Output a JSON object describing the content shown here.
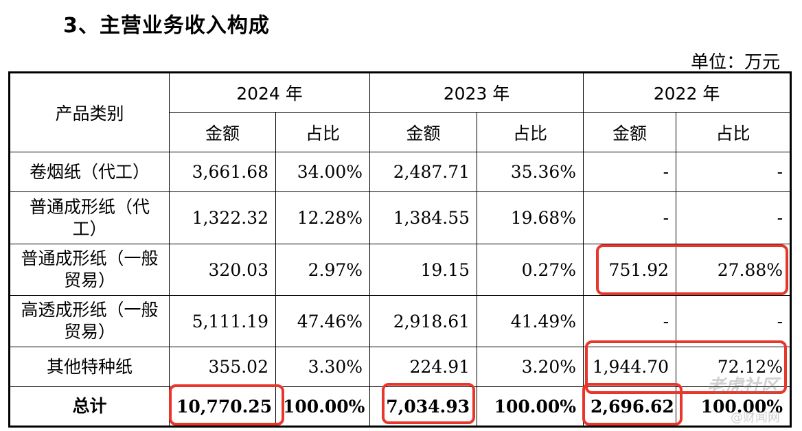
{
  "heading": "3、主营业务收入构成",
  "unit": "单位：万元",
  "table": {
    "category_header": "产品类别",
    "years": [
      "2024 年",
      "2023 年",
      "2022 年"
    ],
    "sub_headers": [
      "金额",
      "占比"
    ],
    "rows": [
      {
        "name": "卷烟纸（代工）",
        "cells": [
          "3,661.68",
          "34.00%",
          "2,487.71",
          "35.36%",
          "-",
          "-"
        ]
      },
      {
        "name": "普通成形纸（代工）",
        "cells": [
          "1,322.32",
          "12.28%",
          "1,384.55",
          "19.68%",
          "-",
          "-"
        ]
      },
      {
        "name": "普通成形纸（一般贸易）",
        "cells": [
          "320.03",
          "2.97%",
          "19.15",
          "0.27%",
          "751.92",
          "27.88%"
        ]
      },
      {
        "name": "高透成形纸（一般贸易）",
        "cells": [
          "5,111.19",
          "47.46%",
          "2,918.61",
          "41.49%",
          "-",
          "-"
        ]
      },
      {
        "name": "其他特种纸",
        "cells": [
          "355.02",
          "3.30%",
          "224.91",
          "3.20%",
          "1,944.70",
          "72.12%"
        ]
      }
    ],
    "total": {
      "name": "总计",
      "cells": [
        "10,770.25",
        "100.00%",
        "7,034.93",
        "100.00%",
        "2,696.62",
        "100.00%"
      ]
    }
  },
  "watermark": {
    "brand": "老虎社区",
    "source": "@财闻网"
  }
}
